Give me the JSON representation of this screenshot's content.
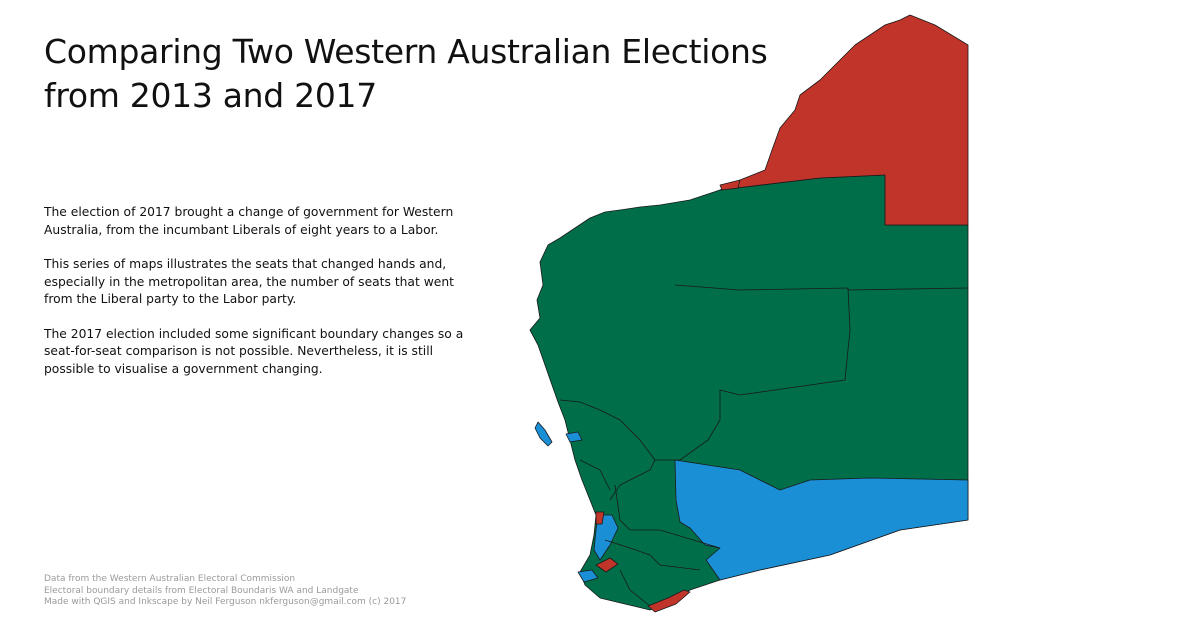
{
  "title": {
    "line1": "Comparing Two Western Australian Elections",
    "line2": "from 2013 and 2017"
  },
  "intro": [
    "The election of 2017 brought a change of government for Western Australia, from the incumbant Liberals of eight years to a Labor.",
    "This series of maps illustrates the seats that changed hands and, especially in the metropolitan area, the number of seats that went from the Liberal party to the Labor party.",
    "The 2017 election included some significant boundary changes so a seat-for-seat comparison is not possible. Nevertheless, it is still possible to visualise a government changing."
  ],
  "credits": [
    "Data from the Western Australian Electoral Commission",
    "Electoral boundary details from Electoral Boundaris WA and Landgate",
    "Made with QGIS and Inkscape by Neil Ferguson nkferguson@gmail.com (c) 2017"
  ],
  "map": {
    "colors": {
      "red": "#c0342a",
      "green": "#006e48",
      "blue": "#1b8fd6",
      "border": "#1a1a1a"
    }
  }
}
